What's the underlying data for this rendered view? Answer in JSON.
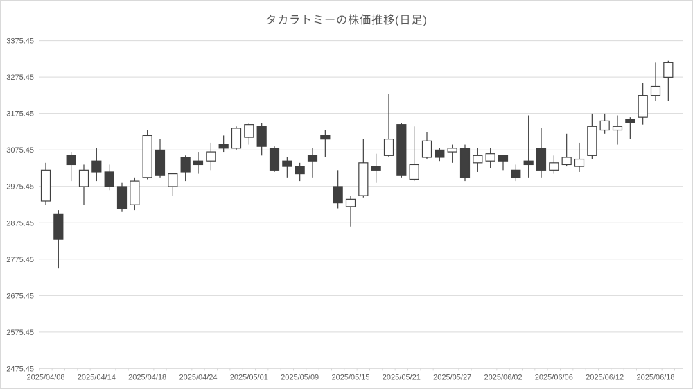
{
  "chart_data": {
    "type": "candlestick",
    "title": "タカラトミーの株価推移(日足)",
    "ylim": [
      2475.45,
      3375.45
    ],
    "y_tick_interval": 100,
    "y_tick_labels": [
      "3375.45",
      "3275.45",
      "3175.45",
      "3075.45",
      "2975.45",
      "2875.45",
      "2775.45",
      "2675.45",
      "2575.45",
      "2475.45"
    ],
    "x_tick_labels": [
      "2025/04/08",
      "2025/04/14",
      "2025/04/18",
      "2025/04/24",
      "2025/05/01",
      "2025/05/09",
      "2025/05/15",
      "2025/05/21",
      "2025/05/27",
      "2025/06/02",
      "2025/06/06",
      "2025/06/12",
      "2025/06/18"
    ],
    "x_label_every": 4,
    "grid": true,
    "legend": "none",
    "colors": {
      "up_fill": "#ffffff",
      "down_fill": "#3f3f3f",
      "stroke": "#3f3f3f",
      "grid": "#d9d9d9",
      "text": "#595959"
    },
    "series": [
      {
        "date": "2025/04/08",
        "open": 2935,
        "high": 3040,
        "low": 2925,
        "close": 3020
      },
      {
        "date": "2025/04/09",
        "open": 2900,
        "high": 2910,
        "low": 2750,
        "close": 2830
      },
      {
        "date": "2025/04/10",
        "open": 3060,
        "high": 3070,
        "low": 2990,
        "close": 3035
      },
      {
        "date": "2025/04/11",
        "open": 2975,
        "high": 3035,
        "low": 2925,
        "close": 3020
      },
      {
        "date": "2025/04/14",
        "open": 3045,
        "high": 3080,
        "low": 2990,
        "close": 3015
      },
      {
        "date": "2025/04/15",
        "open": 3015,
        "high": 3035,
        "low": 2965,
        "close": 2975
      },
      {
        "date": "2025/04/16",
        "open": 2975,
        "high": 2985,
        "low": 2905,
        "close": 2915
      },
      {
        "date": "2025/04/17",
        "open": 2925,
        "high": 3000,
        "low": 2910,
        "close": 2990
      },
      {
        "date": "2025/04/18",
        "open": 3000,
        "high": 3130,
        "low": 2995,
        "close": 3115
      },
      {
        "date": "2025/04/21",
        "open": 3075,
        "high": 3105,
        "low": 3000,
        "close": 3005
      },
      {
        "date": "2025/04/22",
        "open": 2975,
        "high": 3010,
        "low": 2950,
        "close": 3010
      },
      {
        "date": "2025/04/23",
        "open": 3055,
        "high": 3060,
        "low": 2990,
        "close": 3015
      },
      {
        "date": "2025/04/24",
        "open": 3045,
        "high": 3070,
        "low": 3010,
        "close": 3035
      },
      {
        "date": "2025/04/25",
        "open": 3045,
        "high": 3095,
        "low": 3020,
        "close": 3070
      },
      {
        "date": "2025/04/28",
        "open": 3090,
        "high": 3115,
        "low": 3070,
        "close": 3080
      },
      {
        "date": "2025/04/30",
        "open": 3080,
        "high": 3140,
        "low": 3075,
        "close": 3135
      },
      {
        "date": "2025/05/01",
        "open": 3110,
        "high": 3150,
        "low": 3090,
        "close": 3145
      },
      {
        "date": "2025/05/02",
        "open": 3140,
        "high": 3150,
        "low": 3060,
        "close": 3085
      },
      {
        "date": "2025/05/07",
        "open": 3080,
        "high": 3085,
        "low": 3015,
        "close": 3020
      },
      {
        "date": "2025/05/08",
        "open": 3045,
        "high": 3055,
        "low": 3000,
        "close": 3030
      },
      {
        "date": "2025/05/09",
        "open": 3030,
        "high": 3040,
        "low": 2990,
        "close": 3010
      },
      {
        "date": "2025/05/12",
        "open": 3060,
        "high": 3080,
        "low": 3000,
        "close": 3045
      },
      {
        "date": "2025/05/13",
        "open": 3115,
        "high": 3130,
        "low": 3055,
        "close": 3105
      },
      {
        "date": "2025/05/14",
        "open": 2975,
        "high": 3020,
        "low": 2915,
        "close": 2930
      },
      {
        "date": "2025/05/15",
        "open": 2920,
        "high": 2950,
        "low": 2865,
        "close": 2940
      },
      {
        "date": "2025/05/16",
        "open": 2950,
        "high": 3105,
        "low": 2945,
        "close": 3040
      },
      {
        "date": "2025/05/19",
        "open": 3030,
        "high": 3065,
        "low": 2985,
        "close": 3020
      },
      {
        "date": "2025/05/20",
        "open": 3060,
        "high": 3230,
        "low": 3055,
        "close": 3105
      },
      {
        "date": "2025/05/21",
        "open": 3145,
        "high": 3150,
        "low": 3000,
        "close": 3005
      },
      {
        "date": "2025/05/22",
        "open": 2995,
        "high": 3140,
        "low": 2990,
        "close": 3035
      },
      {
        "date": "2025/05/23",
        "open": 3055,
        "high": 3125,
        "low": 3050,
        "close": 3100
      },
      {
        "date": "2025/05/26",
        "open": 3075,
        "high": 3080,
        "low": 3045,
        "close": 3055
      },
      {
        "date": "2025/05/27",
        "open": 3070,
        "high": 3090,
        "low": 3040,
        "close": 3080
      },
      {
        "date": "2025/05/28",
        "open": 3080,
        "high": 3090,
        "low": 2990,
        "close": 3000
      },
      {
        "date": "2025/05/29",
        "open": 3040,
        "high": 3080,
        "low": 3015,
        "close": 3060
      },
      {
        "date": "2025/05/30",
        "open": 3045,
        "high": 3080,
        "low": 3025,
        "close": 3065
      },
      {
        "date": "2025/06/02",
        "open": 3060,
        "high": 3060,
        "low": 3020,
        "close": 3045
      },
      {
        "date": "2025/06/03",
        "open": 3020,
        "high": 3035,
        "low": 2990,
        "close": 3000
      },
      {
        "date": "2025/06/04",
        "open": 3045,
        "high": 3170,
        "low": 3000,
        "close": 3035
      },
      {
        "date": "2025/06/05",
        "open": 3080,
        "high": 3135,
        "low": 3000,
        "close": 3020
      },
      {
        "date": "2025/06/06",
        "open": 3020,
        "high": 3060,
        "low": 3010,
        "close": 3040
      },
      {
        "date": "2025/06/09",
        "open": 3035,
        "high": 3120,
        "low": 3030,
        "close": 3055
      },
      {
        "date": "2025/06/10",
        "open": 3030,
        "high": 3095,
        "low": 3015,
        "close": 3050
      },
      {
        "date": "2025/06/11",
        "open": 3060,
        "high": 3175,
        "low": 3050,
        "close": 3140
      },
      {
        "date": "2025/06/12",
        "open": 3130,
        "high": 3175,
        "low": 3120,
        "close": 3155
      },
      {
        "date": "2025/06/13",
        "open": 3130,
        "high": 3170,
        "low": 3090,
        "close": 3140
      },
      {
        "date": "2025/06/16",
        "open": 3160,
        "high": 3165,
        "low": 3105,
        "close": 3150
      },
      {
        "date": "2025/06/17",
        "open": 3165,
        "high": 3260,
        "low": 3145,
        "close": 3225
      },
      {
        "date": "2025/06/18",
        "open": 3225,
        "high": 3315,
        "low": 3210,
        "close": 3250
      },
      {
        "date": "2025/06/19",
        "open": 3275,
        "high": 3320,
        "low": 3210,
        "close": 3315
      }
    ]
  }
}
